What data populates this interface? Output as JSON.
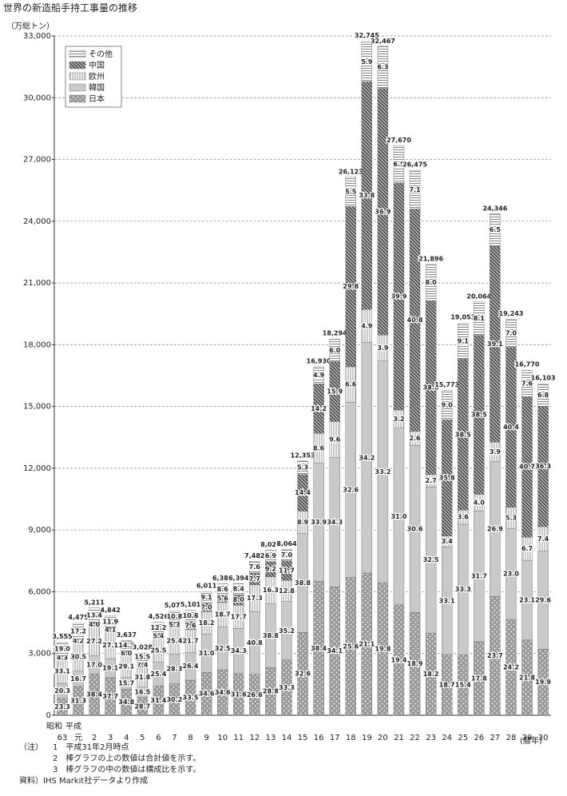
{
  "chart_data": {
    "type": "stacked-bar",
    "title": "世界の新造船手持工事量の推移",
    "y_label": "（万総トン）",
    "x_label": "(暦年)",
    "eras": [
      "昭和",
      "平成"
    ],
    "categories": [
      "63",
      "元",
      "2",
      "3",
      "4",
      "5",
      "6",
      "7",
      "8",
      "9",
      "10",
      "11",
      "12",
      "13",
      "14",
      "15",
      "16",
      "17",
      "18",
      "19",
      "20",
      "21",
      "22",
      "23",
      "24",
      "25",
      "26",
      "27",
      "28",
      "29",
      "30"
    ],
    "totals": {
      "values": [
        3555,
        4475,
        5211,
        4842,
        3637,
        3028,
        4526,
        5075,
        5101,
        6011,
        6387,
        6394,
        7482,
        8021,
        8064,
        12353,
        16930,
        18294,
        26123,
        32745,
        32467,
        27670,
        26475,
        21896,
        15773,
        19053,
        20064,
        24346,
        19243,
        16770,
        16103
      ],
      "value_labels": [
        "3,555",
        "4,475",
        "5,211",
        "4,842",
        "3,637",
        "3,028",
        "4,526",
        "5,075",
        "5,101",
        "6,011",
        "6,387",
        "6,394",
        "7,482",
        "8,021",
        "8,064",
        "12,353",
        "16,930",
        "18,294",
        "26,123",
        "32,745",
        "32,467",
        "27,670",
        "26,475",
        "21,896",
        "15,773",
        "19,053",
        "20,064",
        "24,346",
        "19,243",
        "16,770",
        "16,103"
      ]
    },
    "series": [
      {
        "name": "日本",
        "color": "#9a9a9a",
        "values": [
          23.3,
          31.3,
          38.4,
          37.7,
          34.8,
          28.7,
          31.4,
          30.2,
          33.5,
          34.6,
          34.6,
          31.6,
          26.6,
          28.8,
          33.3,
          32.6,
          38.4,
          34.1,
          25.6,
          21.1,
          19.8,
          19.4,
          18.9,
          18.2,
          18.7,
          15.4,
          17.8,
          23.7,
          24.2,
          21.8,
          19.9
        ],
        "value_labels": [
          "23.3",
          "31.3",
          "38.4",
          "37.7",
          "34.8",
          "28.7",
          "31.4",
          "30.2",
          "33.5",
          "34.6",
          "34.6",
          "31.6",
          "26.6",
          "28.8",
          "33.3",
          "32.6",
          "38.4",
          "34.1",
          "25.6",
          "21.1",
          "19.8",
          "19.4",
          "18.9",
          "18.2",
          "18.7",
          "15.4",
          "17.8",
          "23.7",
          "24.2",
          "21.8",
          "19.9"
        ]
      },
      {
        "name": "韓国",
        "color": "#c9c9c9",
        "values": [
          20.3,
          16.7,
          17.0,
          19.1,
          15.7,
          16.5,
          25.4,
          28.3,
          26.4,
          31.0,
          32.5,
          34.3,
          40.8,
          38.8,
          35.2,
          38.8,
          33.9,
          34.3,
          32.6,
          34.2,
          33.2,
          31.0,
          30.6,
          32.5,
          33.1,
          33.3,
          31.7,
          26.9,
          23.0,
          23.1,
          29.6
        ],
        "value_labels": [
          "20.3",
          "16.7",
          "17.0",
          "19.1",
          "15.7",
          "16.5",
          "25.4",
          "28.3",
          "26.4",
          "31.0",
          "32.5",
          "34.3",
          "40.8",
          "38.8",
          "35.2",
          "38.8",
          "33.9",
          "34.3",
          "32.6",
          "34.2",
          "33.2",
          "31.0",
          "30.6",
          "32.5",
          "33.1",
          "33.3",
          "31.7",
          "26.9",
          "23.0",
          "23.1",
          "29.6"
        ]
      },
      {
        "name": "欧州",
        "color": "#ffffff",
        "values": [
          33.1,
          30.5,
          27.2,
          27.1,
          29.1,
          31.8,
          25.5,
          25.4,
          21.7,
          18.2,
          18.7,
          17.7,
          17.3,
          16.3,
          12.8,
          8.9,
          8.6,
          9.6,
          6.6,
          4.9,
          3.9,
          3.2,
          2.6,
          2.7,
          3.4,
          3.6,
          4.0,
          3.9,
          5.3,
          6.7,
          7.4
        ],
        "value_labels": [
          "33.1",
          "30.5",
          "27.2",
          "27.1",
          "29.1",
          "31.8",
          "25.5",
          "25.4",
          "21.7",
          "18.2",
          "18.7",
          "17.7",
          "17.3",
          "16.3",
          "12.8",
          "8.9",
          "8.6",
          "9.6",
          "6.6",
          "4.9",
          "3.9",
          "3.2",
          "2.6",
          "2.7",
          "3.4",
          "3.6",
          "4.0",
          "3.9",
          "5.3",
          "6.7",
          "7.4"
        ]
      },
      {
        "name": "中国",
        "color": "#505050",
        "values": [
          4.3,
          4.2,
          4.0,
          4.1,
          6.0,
          7.4,
          5.4,
          5.3,
          7.6,
          7.0,
          5.6,
          8.0,
          7.7,
          9.2,
          11.7,
          14.4,
          14.2,
          15.9,
          29.8,
          33.8,
          36.9,
          39.9,
          40.8,
          38.6,
          35.8,
          38.5,
          38.5,
          39.1,
          40.4,
          40.7,
          36.3
        ],
        "value_labels": [
          "4.3",
          "4.2",
          "4.0",
          "4.1",
          "6.0",
          "7.4",
          "5.4",
          "5.3",
          "7.6",
          "7.0",
          "5.6",
          "8.0",
          "7.7",
          "9.2",
          "11.7",
          "14.4",
          "14.2",
          "15.9",
          "29.8",
          "33.8",
          "36.9",
          "39.9",
          "40.8",
          "38.6",
          "35.8",
          "38.5",
          "38.5",
          "39.1",
          "40.4",
          "40.7",
          "36.3"
        ]
      },
      {
        "name": "その他",
        "color": "#ffffff",
        "values": [
          19.0,
          17.2,
          13.4,
          11.9,
          14.3,
          15.5,
          12.2,
          10.8,
          10.8,
          9.1,
          8.6,
          8.4,
          7.6,
          6.9,
          7.0,
          5.3,
          4.9,
          6.0,
          5.5,
          5.9,
          6.3,
          6.5,
          7.1,
          8.0,
          9.0,
          9.1,
          8.1,
          6.5,
          7.0,
          7.6,
          6.8
        ],
        "value_labels": [
          "19.0",
          "17.2",
          "13.4",
          "11.9",
          "14.3",
          "15.5",
          "12.2",
          "10.8",
          "10.8",
          "9.1",
          "8.6",
          "8.4",
          "7.6",
          "6.9",
          "7.0",
          "5.3",
          "4.9",
          "6.0",
          "5.5",
          "5.9",
          "6.3",
          "6.5",
          "7.1",
          "8.0",
          "9.0",
          "9.1",
          "8.1",
          "6.5",
          "7.0",
          "7.6",
          "6.8"
        ]
      }
    ],
    "ylim": [
      0,
      33000
    ],
    "yticks": [
      0,
      {
        "value": 3000,
        "label": "3,000"
      },
      {
        "value": 6000,
        "label": "6,000"
      },
      {
        "value": 9000,
        "label": "9,000"
      },
      {
        "value": 12000,
        "label": "12,000"
      },
      {
        "value": 15000,
        "label": "15,000"
      },
      {
        "value": 18000,
        "label": "18,000"
      },
      {
        "value": 21000,
        "label": "21,000"
      },
      {
        "value": 24000,
        "label": "24,000"
      },
      {
        "value": 27000,
        "label": "27,000"
      },
      {
        "value": 30000,
        "label": "30,000"
      },
      {
        "value": 33000,
        "label": "33,000"
      }
    ],
    "grid": true,
    "legend": "upper-left",
    "notes_label": "（注）",
    "notes": [
      "1　平成31年2月時点",
      "2　棒グラフの上の数値は合計値を示す。",
      "3　棒グラフの中の数値は構成比を示す。"
    ],
    "source": "資料）IHS Markit社データより作成"
  }
}
